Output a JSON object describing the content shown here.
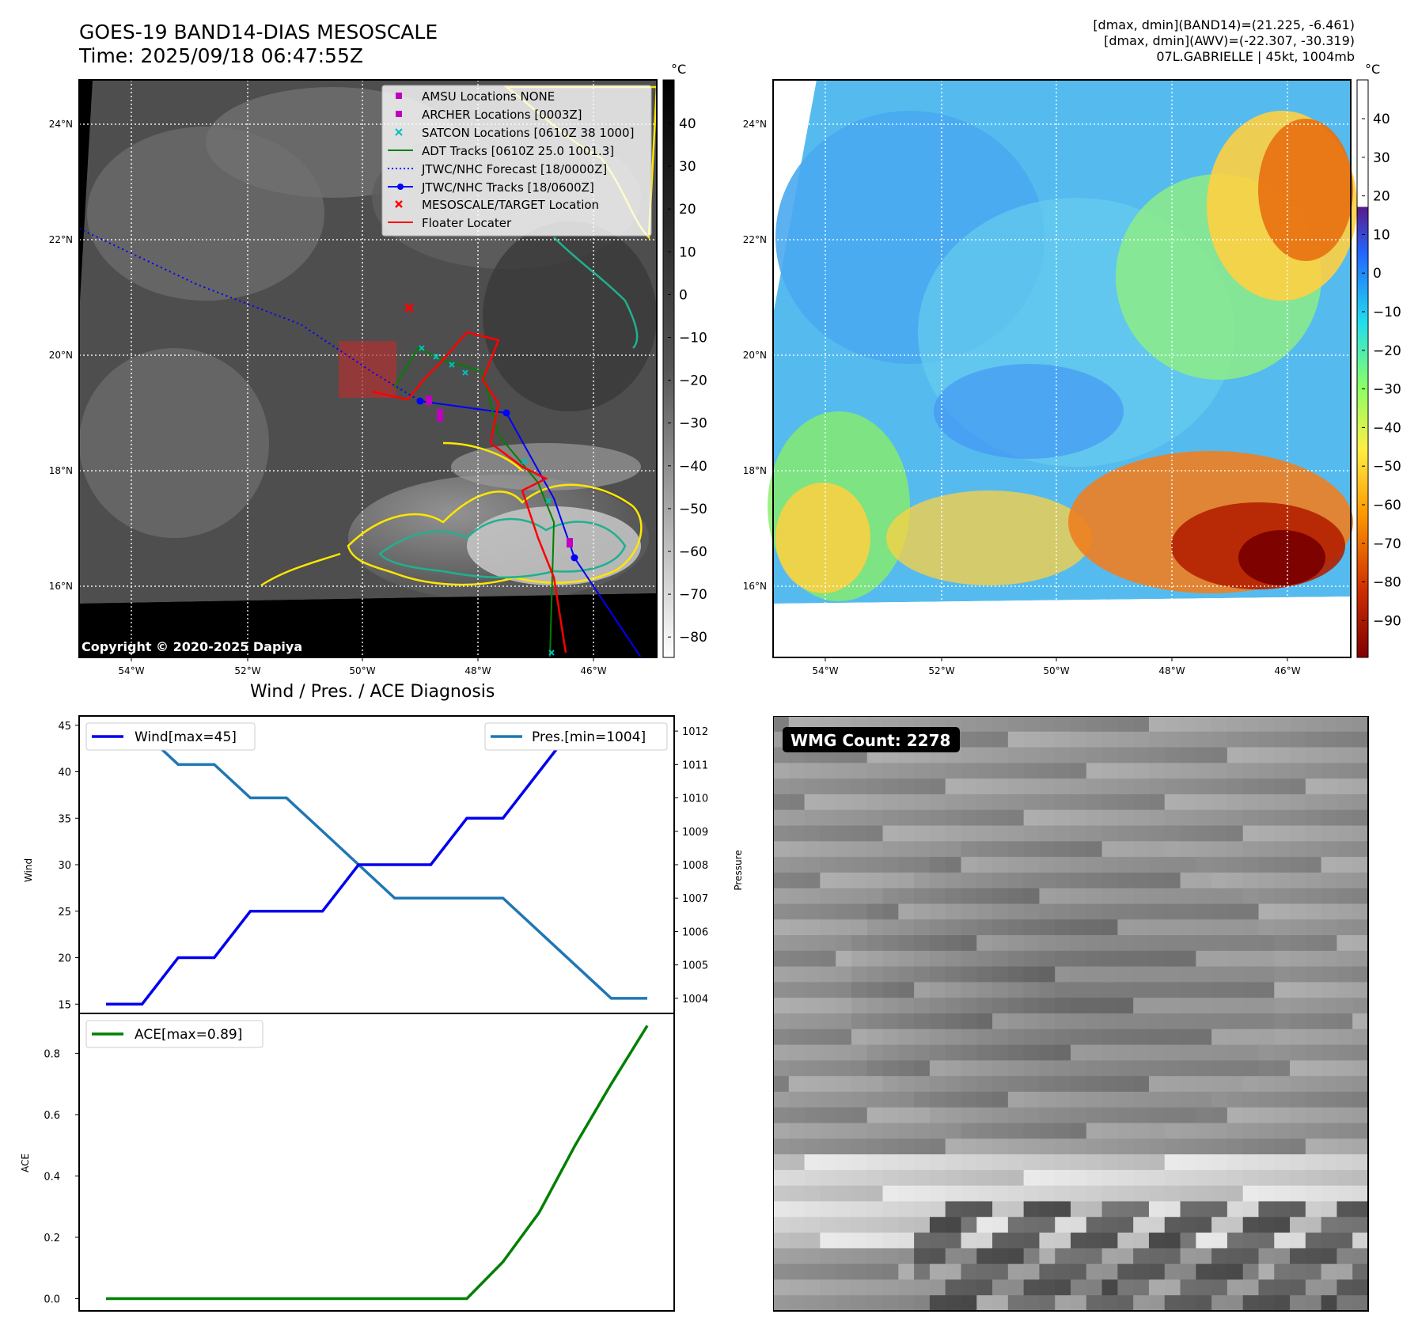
{
  "header": {
    "title_line1": "GOES-19 BAND14-DIAS MESOSCALE",
    "title_line2": "Time: 2025/09/18 06:47:55Z",
    "info_line1": "[dmax, dmin](BAND14)=(21.225, -6.461)",
    "info_line2": "[dmax, dmin](AWV)=(-22.307, -30.319)",
    "info_line3": "07L.GABRIELLE | 45kt, 1004mb"
  },
  "maps": {
    "lon_ticks": [
      "54°W",
      "52°W",
      "50°W",
      "48°W",
      "46°W"
    ],
    "lat_ticks": [
      "24°N",
      "22°N",
      "20°N",
      "18°N",
      "16°N"
    ],
    "copyright": "Copyright © 2020-2025 Dapiya",
    "colorbar_unit": "°C",
    "ir_colorbar_ticks": [
      "40",
      "30",
      "20",
      "10",
      "0",
      "−10",
      "−20",
      "−30",
      "−40",
      "−50",
      "−60",
      "−70",
      "−80"
    ],
    "wv_colorbar_ticks": [
      "40",
      "30",
      "20",
      "10",
      "0",
      "−10",
      "−20",
      "−30",
      "−40",
      "−50",
      "−60",
      "−70",
      "−80",
      "−90"
    ],
    "legend": [
      {
        "label": "AMSU Locations NONE",
        "marker": "square",
        "color": "#bf00bf"
      },
      {
        "label": "ARCHER Locations [0003Z]",
        "marker": "square",
        "color": "#bf00bf"
      },
      {
        "label": "SATCON Locations [0610Z 38 1000]",
        "marker": "x",
        "color": "#00bfbf"
      },
      {
        "label": "ADT Tracks [0610Z 25.0 1001.3]",
        "marker": "line",
        "color": "#008000"
      },
      {
        "label": "JTWC/NHC Forecast [18/0000Z]",
        "marker": "dotted",
        "color": "#0000ff"
      },
      {
        "label": "JTWC/NHC Tracks [18/0600Z]",
        "marker": "line-dot",
        "color": "#0000ff"
      },
      {
        "label": "MESOSCALE/TARGET Location",
        "marker": "x",
        "color": "#ff0000"
      },
      {
        "label": "Floater Locater",
        "marker": "line",
        "color": "#ff0000"
      }
    ]
  },
  "diagnosis": {
    "title": "Wind / Pres. / ACE Diagnosis",
    "wind_legend": "Wind[max=45]",
    "pres_legend": "Pres.[min=1004]",
    "ace_legend": "ACE[max=0.89]",
    "wind_ylabel": "Wind",
    "pres_ylabel": "Pressure",
    "ace_ylabel": "ACE",
    "colors": {
      "wind": "#0000ee",
      "pressure": "#1f77b4",
      "ace": "#008000"
    }
  },
  "wmg": {
    "label": "WMG Count: 2278"
  },
  "chart_data": [
    {
      "type": "line",
      "title": "Wind / Pres. / ACE Diagnosis",
      "series": [
        {
          "name": "Wind[max=45]",
          "axis": "left",
          "values": [
            15,
            15,
            20,
            20,
            25,
            25,
            25,
            30,
            30,
            30,
            35,
            35,
            40,
            45,
            45,
            45
          ]
        },
        {
          "name": "Pres.[min=1004]",
          "axis": "right",
          "values": [
            1012,
            1012,
            1011,
            1011,
            1010,
            1010,
            1009,
            1008,
            1007,
            1007,
            1007,
            1007,
            1006,
            1005,
            1004,
            1004
          ]
        }
      ],
      "ylabel": "Wind",
      "ylim": [
        14,
        46
      ],
      "y2label": "Pressure",
      "y2lim": [
        1003.95,
        1012.05
      ],
      "yticks": [
        15,
        20,
        25,
        30,
        35,
        40,
        45
      ],
      "y2ticks": [
        1004,
        1005,
        1006,
        1007,
        1008,
        1009,
        1010,
        1011,
        1012
      ]
    },
    {
      "type": "line",
      "series": [
        {
          "name": "ACE[max=0.89]",
          "values": [
            0,
            0,
            0,
            0,
            0,
            0,
            0,
            0,
            0,
            0,
            0,
            0.12,
            0.28,
            0.5,
            0.7,
            0.89
          ]
        }
      ],
      "ylabel": "ACE",
      "ylim": [
        -0.04,
        0.93
      ],
      "yticks": [
        0.0,
        0.2,
        0.4,
        0.6,
        0.8
      ]
    }
  ]
}
